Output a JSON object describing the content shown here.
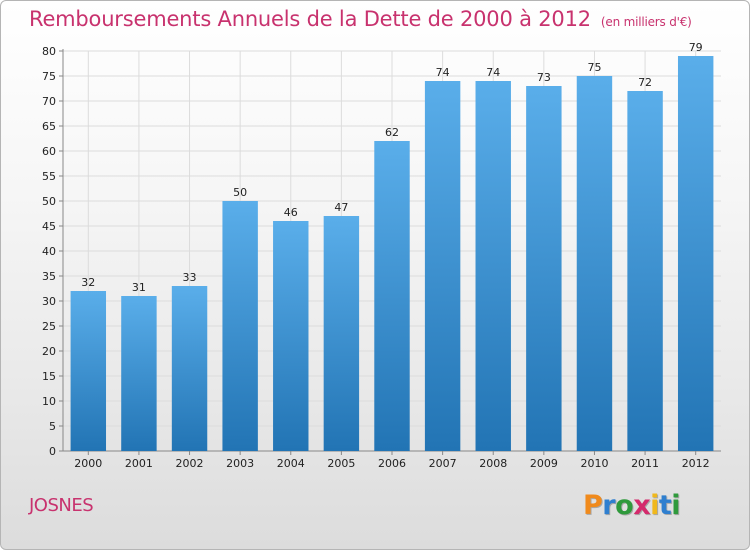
{
  "header": {
    "title": "Remboursements Annuels de la Dette de 2000 à 2012",
    "subtitle": "(en milliers d'€)"
  },
  "footer": {
    "commune": "JOSNES",
    "logo_letters": [
      "P",
      "r",
      "o",
      "x",
      "i",
      "t",
      "i"
    ]
  },
  "colors": {
    "title": "#c8326e",
    "bar_top": "#5aaeea",
    "bar_bottom": "#2274b4",
    "logo": [
      "#f08a1c",
      "#2f7fcf",
      "#2f9a3c",
      "#d42a6c",
      "#f0b81c",
      "#2f7fcf",
      "#2f9a3c"
    ]
  },
  "chart_data": {
    "type": "bar",
    "title": "Remboursements Annuels de la Dette de 2000 à 2012",
    "subtitle": "(en milliers d'€)",
    "categories": [
      "2000",
      "2001",
      "2002",
      "2003",
      "2004",
      "2005",
      "2006",
      "2007",
      "2008",
      "2009",
      "2010",
      "2011",
      "2012"
    ],
    "values": [
      32,
      31,
      33,
      50,
      46,
      47,
      62,
      74,
      74,
      73,
      75,
      72,
      79
    ],
    "xlabel": "",
    "ylabel": "",
    "ylim": [
      0,
      80
    ],
    "yticks": [
      0,
      5,
      10,
      15,
      20,
      25,
      30,
      35,
      40,
      45,
      50,
      55,
      60,
      65,
      70,
      75,
      80
    ],
    "grid": true,
    "data_labels": true
  }
}
